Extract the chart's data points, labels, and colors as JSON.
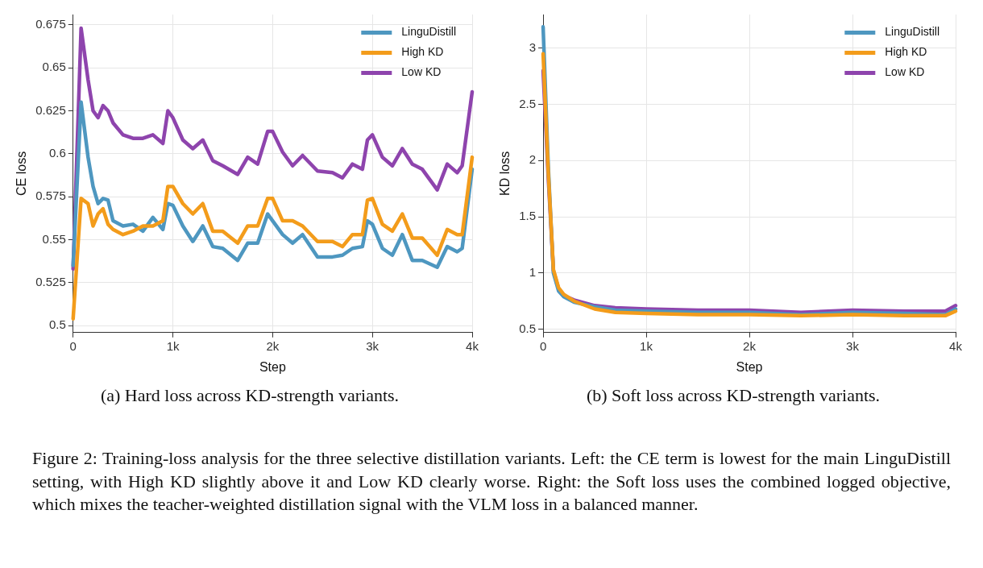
{
  "chart_data": [
    {
      "type": "line",
      "xlabel": "Step",
      "ylabel": "CE loss",
      "x": [
        0,
        80,
        150,
        200,
        250,
        300,
        350,
        400,
        500,
        600,
        700,
        800,
        900,
        950,
        1000,
        1100,
        1200,
        1300,
        1400,
        1500,
        1650,
        1750,
        1850,
        1950,
        2000,
        2100,
        2200,
        2300,
        2450,
        2600,
        2700,
        2800,
        2900,
        2950,
        3000,
        3100,
        3200,
        3300,
        3400,
        3500,
        3650,
        3750,
        3850,
        3900,
        4000
      ],
      "series": [
        {
          "name": "LinguDistill",
          "color": "#4e97c0",
          "values": [
            0.535,
            0.63,
            0.598,
            0.581,
            0.571,
            0.574,
            0.573,
            0.561,
            0.558,
            0.559,
            0.555,
            0.563,
            0.556,
            0.571,
            0.57,
            0.558,
            0.549,
            0.558,
            0.546,
            0.545,
            0.538,
            0.548,
            0.548,
            0.565,
            0.561,
            0.553,
            0.548,
            0.553,
            0.54,
            0.54,
            0.541,
            0.545,
            0.546,
            0.561,
            0.559,
            0.545,
            0.541,
            0.553,
            0.538,
            0.538,
            0.534,
            0.546,
            0.543,
            0.545,
            0.591
          ]
        },
        {
          "name": "High KD",
          "color": "#f39c1b",
          "values": [
            0.504,
            0.574,
            0.571,
            0.558,
            0.565,
            0.568,
            0.559,
            0.556,
            0.553,
            0.555,
            0.558,
            0.558,
            0.561,
            0.581,
            0.581,
            0.571,
            0.565,
            0.571,
            0.555,
            0.555,
            0.548,
            0.558,
            0.558,
            0.574,
            0.574,
            0.561,
            0.561,
            0.558,
            0.549,
            0.549,
            0.546,
            0.553,
            0.553,
            0.573,
            0.574,
            0.559,
            0.555,
            0.565,
            0.551,
            0.551,
            0.541,
            0.556,
            0.553,
            0.553,
            0.598
          ]
        },
        {
          "name": "Low KD",
          "color": "#8e44ad",
          "values": [
            0.533,
            0.673,
            0.643,
            0.625,
            0.621,
            0.628,
            0.625,
            0.618,
            0.611,
            0.609,
            0.609,
            0.611,
            0.606,
            0.625,
            0.621,
            0.608,
            0.603,
            0.608,
            0.596,
            0.593,
            0.588,
            0.598,
            0.594,
            0.613,
            0.613,
            0.601,
            0.593,
            0.599,
            0.59,
            0.589,
            0.586,
            0.594,
            0.591,
            0.608,
            0.611,
            0.598,
            0.593,
            0.603,
            0.594,
            0.591,
            0.579,
            0.594,
            0.589,
            0.593,
            0.636
          ]
        }
      ],
      "xlim": [
        0,
        4000
      ],
      "xticks": [
        {
          "value": 0,
          "label": "0"
        },
        {
          "value": 1000,
          "label": "1k"
        },
        {
          "value": 2000,
          "label": "2k"
        },
        {
          "value": 3000,
          "label": "3k"
        },
        {
          "value": 4000,
          "label": "4k"
        }
      ],
      "ylim": [
        0.496,
        0.681
      ],
      "yticks": [
        0.5,
        0.525,
        0.55,
        0.575,
        0.6,
        0.625,
        0.65,
        0.675
      ],
      "grid": true,
      "legend": "top right",
      "line_style": "solid",
      "annotations": [
        "(a) Hard loss across KD-strength variants."
      ]
    },
    {
      "type": "line",
      "xlabel": "Step",
      "ylabel": "KD loss",
      "x": [
        0,
        50,
        100,
        150,
        200,
        300,
        500,
        700,
        1000,
        1500,
        2000,
        2500,
        3000,
        3500,
        3900,
        4000
      ],
      "series": [
        {
          "name": "LinguDistill",
          "color": "#4e97c0",
          "values": [
            3.19,
            1.95,
            1.0,
            0.84,
            0.79,
            0.74,
            0.7,
            0.67,
            0.66,
            0.65,
            0.65,
            0.63,
            0.65,
            0.64,
            0.63,
            0.68
          ]
        },
        {
          "name": "High KD",
          "color": "#f39c1b",
          "values": [
            2.95,
            1.9,
            1.03,
            0.87,
            0.81,
            0.75,
            0.68,
            0.65,
            0.64,
            0.63,
            0.63,
            0.62,
            0.63,
            0.62,
            0.62,
            0.66
          ]
        },
        {
          "name": "Low KD",
          "color": "#8e44ad",
          "values": [
            2.8,
            1.85,
            1.02,
            0.86,
            0.8,
            0.76,
            0.71,
            0.69,
            0.68,
            0.67,
            0.67,
            0.65,
            0.67,
            0.66,
            0.66,
            0.71
          ]
        }
      ],
      "xlim": [
        0,
        4000
      ],
      "xticks": [
        {
          "value": 0,
          "label": "0"
        },
        {
          "value": 1000,
          "label": "1k"
        },
        {
          "value": 2000,
          "label": "2k"
        },
        {
          "value": 3000,
          "label": "3k"
        },
        {
          "value": 4000,
          "label": "4k"
        }
      ],
      "ylim": [
        0.47,
        3.3
      ],
      "yticks": [
        0.5,
        1.0,
        1.5,
        2.0,
        2.5,
        3.0
      ],
      "grid": true,
      "legend": "top right",
      "line_style": "solid",
      "annotations": [
        "(b) Soft loss across KD-strength variants.",
        "Figure 2: Training-loss analysis for the three selective distillation variants. Left: the CE term is lowest for the main LinguDistill setting, with High KD slightly above it and Low KD clearly worse. Right: the Soft loss uses the combined logged objective, which mixes the teacher-weighted distillation signal with the VLM loss in a balanced manner."
      ]
    }
  ]
}
